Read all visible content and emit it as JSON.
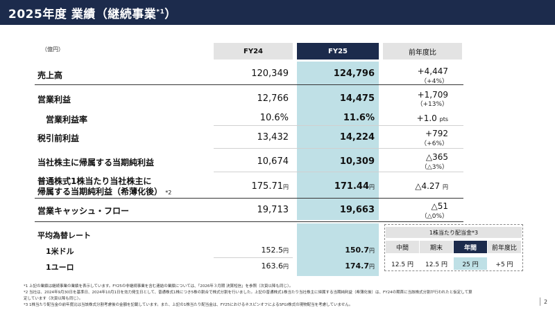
{
  "header": {
    "title": "2025年度 業績（継続事業",
    "title_sup": "*1",
    "title_end": "）"
  },
  "unit": "（億円）",
  "columns": {
    "fy24": "FY24",
    "fy25": "FY25",
    "yoy": "前年度比"
  },
  "rows": [
    {
      "label": "売上高",
      "fy24": "120,349",
      "fy25": "124,796",
      "yoy": "+4,447",
      "yoy_sub": "（+4%）"
    },
    {
      "label": "営業利益",
      "fy24": "12,766",
      "fy25": "14,475",
      "yoy": "+1,709",
      "yoy_sub": "（+13%）"
    },
    {
      "label": "営業利益率",
      "fy24": "10.6%",
      "fy25": "11.6%",
      "yoy": "+1.0",
      "yoy_unit": "pts"
    },
    {
      "label": "税引前利益",
      "fy24": "13,432",
      "fy25": "14,224",
      "yoy": "+792",
      "yoy_sub": "（+6%）"
    },
    {
      "label": "当社株主に帰属する当期純利益",
      "fy24": "10,674",
      "fy25": "10,309",
      "yoy": "△365",
      "yoy_sub": "（△3%）"
    },
    {
      "label_line1": "普通株式1株当たり当社株主に",
      "label_line2": "帰属する当期純利益（希薄化後）",
      "label_sup": "*2",
      "fy24": "175.71",
      "fy24_unit": "円",
      "fy25": "171.44",
      "fy25_unit": "円",
      "yoy": "△4.27",
      "yoy_unit": "円"
    },
    {
      "label": "営業キャッシュ・フロー",
      "fy24": "19,713",
      "fy25": "19,663",
      "yoy": "△51",
      "yoy_sub": "（△0%）"
    }
  ],
  "fx": {
    "title": "平均為替レート",
    "usd": {
      "label": "1米ドル",
      "fy24": "152.5",
      "fy25": "150.7",
      "unit": "円"
    },
    "eur": {
      "label": "1ユーロ",
      "fy24": "163.6",
      "fy25": "174.7",
      "unit": "円"
    }
  },
  "dividend": {
    "title": "1株当たり配当金*3",
    "heads": [
      "中間",
      "期末",
      "年間",
      "前年度比"
    ],
    "values": [
      "12.5 円",
      "12.5 円",
      "25 円",
      "+5 円"
    ]
  },
  "notes": [
    "*1  上記の業績は継続事業の業績を表示しています。FY25の非継続事業を含む連結の業績については、「2026年３月期 決算短信」を参照（次頁以降も同じ）。",
    "*2  当社は、2024年9月30日を基準日、2024年10月1日を効力発生日として、普通株式1株につき5株の割合で株式分割を行いました。上記の普通株式1株当たり当社株主に帰属する当期純利益（希薄化後）は、FY24の期首に当該株式分割が行われたと仮定して算",
    "      定しています（次頁以降も同じ）。",
    "*3  1株当たり配当金の前年度比は当該株式分割考慮後の金額を記載しています。また、上記の1株当たり配当金は、FY25におけるネスピンオフによるSFGI株式の現物配当を考慮していません。"
  ],
  "page": "2"
}
